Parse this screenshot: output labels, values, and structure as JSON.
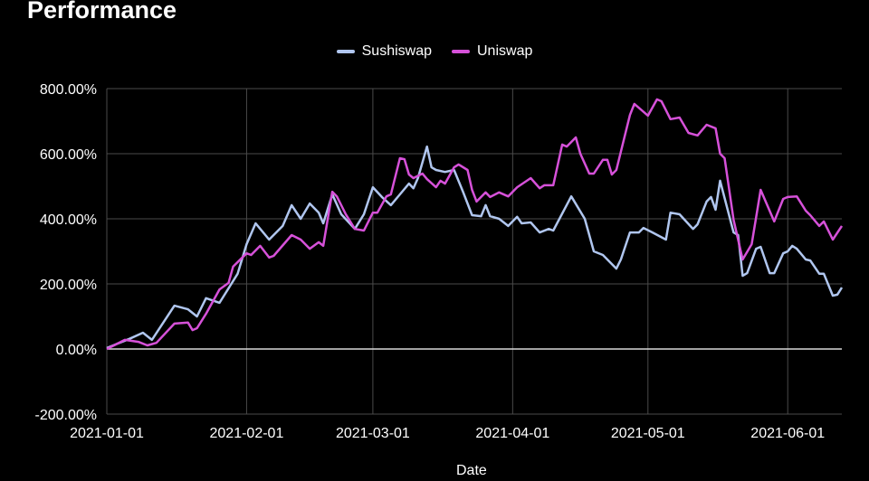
{
  "chart_data": {
    "type": "line",
    "title": "Performance",
    "xlabel": "Date",
    "ylabel": "",
    "xlim": [
      "2021-01-01",
      "2021-06-13"
    ],
    "ylim": [
      -200,
      800
    ],
    "y_unit": "%",
    "yticks": [
      -200,
      0,
      200,
      400,
      600,
      800
    ],
    "ytick_labels": [
      "-200.00%",
      "0.00%",
      "200.00%",
      "400.00%",
      "600.00%",
      "800.00%"
    ],
    "xticks": [
      "2021-01-01",
      "2021-02-01",
      "2021-03-01",
      "2021-04-01",
      "2021-05-01",
      "2021-06-01"
    ],
    "grid": true,
    "legend_position": "top-center",
    "background": "#000000",
    "series": [
      {
        "name": "Sushiswap",
        "color": "#b0c6ef",
        "points": [
          [
            "2021-01-01",
            3
          ],
          [
            "2021-01-06",
            31
          ],
          [
            "2021-01-09",
            50
          ],
          [
            "2021-01-11",
            28
          ],
          [
            "2021-01-16",
            133
          ],
          [
            "2021-01-19",
            122
          ],
          [
            "2021-01-21",
            100
          ],
          [
            "2021-01-23",
            156
          ],
          [
            "2021-01-26",
            142
          ],
          [
            "2021-01-30",
            231
          ],
          [
            "2021-02-01",
            322
          ],
          [
            "2021-02-03",
            386
          ],
          [
            "2021-02-06",
            336
          ],
          [
            "2021-02-09",
            378
          ],
          [
            "2021-02-11",
            442
          ],
          [
            "2021-02-13",
            400
          ],
          [
            "2021-02-15",
            447
          ],
          [
            "2021-02-17",
            419
          ],
          [
            "2021-02-18",
            386
          ],
          [
            "2021-02-20",
            475
          ],
          [
            "2021-02-22",
            414
          ],
          [
            "2021-02-25",
            369
          ],
          [
            "2021-02-27",
            414
          ],
          [
            "2021-03-01",
            497
          ],
          [
            "2021-03-03",
            467
          ],
          [
            "2021-03-05",
            442
          ],
          [
            "2021-03-07",
            475
          ],
          [
            "2021-03-09",
            508
          ],
          [
            "2021-03-10",
            494
          ],
          [
            "2021-03-11",
            525
          ],
          [
            "2021-03-13",
            622
          ],
          [
            "2021-03-14",
            558
          ],
          [
            "2021-03-15",
            550
          ],
          [
            "2021-03-17",
            544
          ],
          [
            "2021-03-19",
            550
          ],
          [
            "2021-03-21",
            483
          ],
          [
            "2021-03-23",
            411
          ],
          [
            "2021-03-25",
            408
          ],
          [
            "2021-03-26",
            442
          ],
          [
            "2021-03-27",
            408
          ],
          [
            "2021-03-29",
            400
          ],
          [
            "2021-03-31",
            378
          ],
          [
            "2021-04-02",
            406
          ],
          [
            "2021-04-03",
            386
          ],
          [
            "2021-04-05",
            389
          ],
          [
            "2021-04-07",
            358
          ],
          [
            "2021-04-09",
            369
          ],
          [
            "2021-04-10",
            364
          ],
          [
            "2021-04-14",
            469
          ],
          [
            "2021-04-17",
            400
          ],
          [
            "2021-04-19",
            300
          ],
          [
            "2021-04-21",
            289
          ],
          [
            "2021-04-24",
            247
          ],
          [
            "2021-04-25",
            275
          ],
          [
            "2021-04-27",
            358
          ],
          [
            "2021-04-29",
            358
          ],
          [
            "2021-04-30",
            372
          ],
          [
            "2021-05-02",
            358
          ],
          [
            "2021-05-05",
            336
          ],
          [
            "2021-05-06",
            419
          ],
          [
            "2021-05-08",
            414
          ],
          [
            "2021-05-11",
            369
          ],
          [
            "2021-05-12",
            383
          ],
          [
            "2021-05-14",
            453
          ],
          [
            "2021-05-15",
            467
          ],
          [
            "2021-05-16",
            428
          ],
          [
            "2021-05-17",
            517
          ],
          [
            "2021-05-20",
            358
          ],
          [
            "2021-05-21",
            350
          ],
          [
            "2021-05-22",
            225
          ],
          [
            "2021-05-23",
            233
          ],
          [
            "2021-05-25",
            308
          ],
          [
            "2021-05-26",
            314
          ],
          [
            "2021-05-28",
            233
          ],
          [
            "2021-05-29",
            233
          ],
          [
            "2021-05-31",
            294
          ],
          [
            "2021-06-01",
            300
          ],
          [
            "2021-06-02",
            317
          ],
          [
            "2021-06-03",
            308
          ],
          [
            "2021-06-05",
            275
          ],
          [
            "2021-06-06",
            272
          ],
          [
            "2021-06-08",
            231
          ],
          [
            "2021-06-09",
            231
          ],
          [
            "2021-06-11",
            164
          ],
          [
            "2021-06-12",
            167
          ],
          [
            "2021-06-13",
            189
          ]
        ]
      },
      {
        "name": "Uniswap",
        "color": "#d651d9",
        "points": [
          [
            "2021-01-01",
            0
          ],
          [
            "2021-01-05",
            28
          ],
          [
            "2021-01-08",
            22
          ],
          [
            "2021-01-10",
            11
          ],
          [
            "2021-01-12",
            19
          ],
          [
            "2021-01-16",
            78
          ],
          [
            "2021-01-19",
            81
          ],
          [
            "2021-01-20",
            58
          ],
          [
            "2021-01-21",
            64
          ],
          [
            "2021-01-23",
            108
          ],
          [
            "2021-01-26",
            183
          ],
          [
            "2021-01-28",
            203
          ],
          [
            "2021-01-29",
            253
          ],
          [
            "2021-02-01",
            294
          ],
          [
            "2021-02-02",
            289
          ],
          [
            "2021-02-04",
            317
          ],
          [
            "2021-02-06",
            281
          ],
          [
            "2021-02-07",
            286
          ],
          [
            "2021-02-11",
            350
          ],
          [
            "2021-02-13",
            336
          ],
          [
            "2021-02-15",
            308
          ],
          [
            "2021-02-17",
            328
          ],
          [
            "2021-02-18",
            317
          ],
          [
            "2021-02-20",
            483
          ],
          [
            "2021-02-21",
            469
          ],
          [
            "2021-02-23",
            414
          ],
          [
            "2021-02-25",
            369
          ],
          [
            "2021-02-27",
            364
          ],
          [
            "2021-03-01",
            419
          ],
          [
            "2021-03-02",
            419
          ],
          [
            "2021-03-04",
            469
          ],
          [
            "2021-03-05",
            475
          ],
          [
            "2021-03-07",
            586
          ],
          [
            "2021-03-08",
            583
          ],
          [
            "2021-03-09",
            536
          ],
          [
            "2021-03-10",
            525
          ],
          [
            "2021-03-12",
            539
          ],
          [
            "2021-03-13",
            522
          ],
          [
            "2021-03-15",
            497
          ],
          [
            "2021-03-16",
            517
          ],
          [
            "2021-03-17",
            508
          ],
          [
            "2021-03-19",
            558
          ],
          [
            "2021-03-20",
            567
          ],
          [
            "2021-03-22",
            550
          ],
          [
            "2021-03-23",
            489
          ],
          [
            "2021-03-24",
            453
          ],
          [
            "2021-03-26",
            481
          ],
          [
            "2021-03-27",
            467
          ],
          [
            "2021-03-29",
            481
          ],
          [
            "2021-03-31",
            469
          ],
          [
            "2021-04-02",
            497
          ],
          [
            "2021-04-05",
            525
          ],
          [
            "2021-04-07",
            494
          ],
          [
            "2021-04-08",
            503
          ],
          [
            "2021-04-10",
            503
          ],
          [
            "2021-04-12",
            628
          ],
          [
            "2021-04-13",
            622
          ],
          [
            "2021-04-15",
            650
          ],
          [
            "2021-04-16",
            600
          ],
          [
            "2021-04-18",
            539
          ],
          [
            "2021-04-19",
            539
          ],
          [
            "2021-04-21",
            581
          ],
          [
            "2021-04-22",
            581
          ],
          [
            "2021-04-23",
            536
          ],
          [
            "2021-04-24",
            550
          ],
          [
            "2021-04-27",
            719
          ],
          [
            "2021-04-28",
            753
          ],
          [
            "2021-05-01",
            717
          ],
          [
            "2021-05-03",
            767
          ],
          [
            "2021-05-04",
            761
          ],
          [
            "2021-05-06",
            706
          ],
          [
            "2021-05-08",
            711
          ],
          [
            "2021-05-10",
            664
          ],
          [
            "2021-05-12",
            656
          ],
          [
            "2021-05-14",
            689
          ],
          [
            "2021-05-16",
            678
          ],
          [
            "2021-05-17",
            600
          ],
          [
            "2021-05-18",
            586
          ],
          [
            "2021-05-20",
            397
          ],
          [
            "2021-05-22",
            275
          ],
          [
            "2021-05-24",
            322
          ],
          [
            "2021-05-26",
            489
          ],
          [
            "2021-05-29",
            392
          ],
          [
            "2021-05-31",
            461
          ],
          [
            "2021-06-01",
            467
          ],
          [
            "2021-06-03",
            469
          ],
          [
            "2021-06-05",
            425
          ],
          [
            "2021-06-06",
            411
          ],
          [
            "2021-06-08",
            378
          ],
          [
            "2021-06-09",
            392
          ],
          [
            "2021-06-11",
            336
          ],
          [
            "2021-06-13",
            378
          ]
        ]
      }
    ]
  }
}
